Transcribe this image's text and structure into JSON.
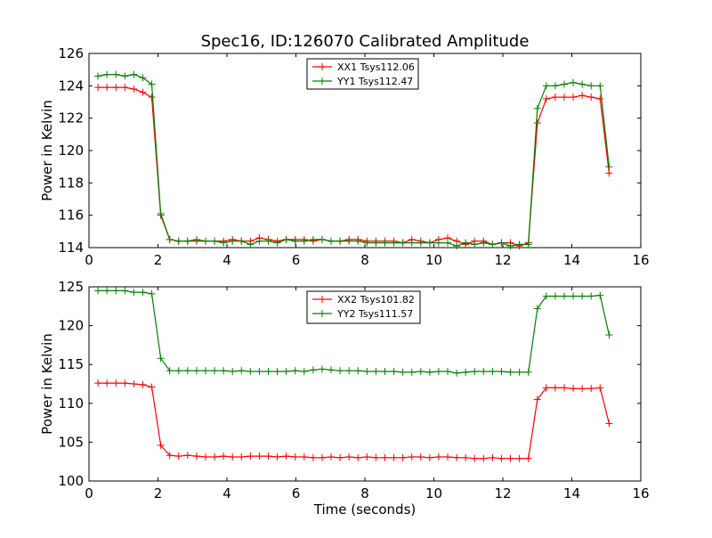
{
  "chart_data": [
    {
      "type": "line",
      "title": "Spec16, ID:126070 Calibrated Amplitude",
      "xlabel": "",
      "ylabel": "Power in Kelvin",
      "xlim": [
        0,
        16
      ],
      "ylim": [
        114,
        126
      ],
      "xticks": [
        "0",
        "2",
        "4",
        "6",
        "8",
        "10",
        "12",
        "14",
        "16"
      ],
      "yticks": [
        "114",
        "116",
        "118",
        "120",
        "122",
        "124",
        "126"
      ],
      "legend_position": "top-center",
      "grid": false,
      "series": [
        {
          "name": "XX1 Tsys112.06",
          "color": "#ff0000",
          "x": [
            0.26,
            0.52,
            0.78,
            1.04,
            1.3,
            1.56,
            1.82,
            2.08,
            2.34,
            2.6,
            2.86,
            3.12,
            3.38,
            3.64,
            3.9,
            4.16,
            4.42,
            4.68,
            4.94,
            5.2,
            5.46,
            5.72,
            5.98,
            6.24,
            6.5,
            6.76,
            7.02,
            7.28,
            7.54,
            7.8,
            8.06,
            8.32,
            8.58,
            8.84,
            9.1,
            9.36,
            9.62,
            9.88,
            10.14,
            10.4,
            10.66,
            10.92,
            11.18,
            11.44,
            11.7,
            11.96,
            12.22,
            12.48,
            12.74,
            13.0,
            13.26,
            13.52,
            13.78,
            14.04,
            14.3,
            14.56,
            14.82,
            15.08
          ],
          "values": [
            123.9,
            123.9,
            123.9,
            123.9,
            123.8,
            123.6,
            123.3,
            116.0,
            114.5,
            114.4,
            114.4,
            114.4,
            114.4,
            114.4,
            114.4,
            114.5,
            114.4,
            114.4,
            114.6,
            114.5,
            114.4,
            114.5,
            114.5,
            114.5,
            114.4,
            114.5,
            114.4,
            114.4,
            114.5,
            114.5,
            114.4,
            114.4,
            114.4,
            114.4,
            114.3,
            114.5,
            114.4,
            114.3,
            114.5,
            114.6,
            114.4,
            114.2,
            114.4,
            114.4,
            114.2,
            114.3,
            114.3,
            114.1,
            114.3,
            121.7,
            123.2,
            123.3,
            123.3,
            123.3,
            123.4,
            123.3,
            123.2,
            118.6
          ]
        },
        {
          "name": "YY1 Tsys112.47",
          "color": "#008000",
          "x": [
            0.26,
            0.52,
            0.78,
            1.04,
            1.3,
            1.56,
            1.82,
            2.08,
            2.34,
            2.6,
            2.86,
            3.12,
            3.38,
            3.64,
            3.9,
            4.16,
            4.42,
            4.68,
            4.94,
            5.2,
            5.46,
            5.72,
            5.98,
            6.24,
            6.5,
            6.76,
            7.02,
            7.28,
            7.54,
            7.8,
            8.06,
            8.32,
            8.58,
            8.84,
            9.1,
            9.36,
            9.62,
            9.88,
            10.14,
            10.4,
            10.66,
            10.92,
            11.18,
            11.44,
            11.7,
            11.96,
            12.22,
            12.48,
            12.74,
            13.0,
            13.26,
            13.52,
            13.78,
            14.04,
            14.3,
            14.56,
            14.82,
            15.08
          ],
          "values": [
            124.6,
            124.7,
            124.7,
            124.6,
            124.7,
            124.5,
            124.1,
            116.1,
            114.5,
            114.4,
            114.4,
            114.5,
            114.4,
            114.4,
            114.3,
            114.4,
            114.4,
            114.2,
            114.4,
            114.4,
            114.3,
            114.5,
            114.4,
            114.4,
            114.5,
            114.5,
            114.4,
            114.4,
            114.4,
            114.4,
            114.3,
            114.3,
            114.3,
            114.3,
            114.3,
            114.3,
            114.3,
            114.3,
            114.3,
            114.3,
            114.1,
            114.3,
            114.2,
            114.3,
            114.2,
            114.3,
            114.1,
            114.2,
            114.2,
            122.6,
            124.0,
            124.0,
            124.1,
            124.2,
            124.1,
            124.0,
            124.0,
            119.0
          ]
        }
      ]
    },
    {
      "type": "line",
      "title": "",
      "xlabel": "Time (seconds)",
      "ylabel": "Power in Kelvin",
      "xlim": [
        0,
        16
      ],
      "ylim": [
        100,
        125
      ],
      "xticks": [
        "0",
        "2",
        "4",
        "6",
        "8",
        "10",
        "12",
        "14",
        "16"
      ],
      "yticks": [
        "100",
        "105",
        "110",
        "115",
        "120",
        "125"
      ],
      "legend_position": "top-center",
      "grid": false,
      "series": [
        {
          "name": "XX2 Tsys101.82",
          "color": "#ff0000",
          "x": [
            0.26,
            0.52,
            0.78,
            1.04,
            1.3,
            1.56,
            1.82,
            2.08,
            2.34,
            2.6,
            2.86,
            3.12,
            3.38,
            3.64,
            3.9,
            4.16,
            4.42,
            4.68,
            4.94,
            5.2,
            5.46,
            5.72,
            5.98,
            6.24,
            6.5,
            6.76,
            7.02,
            7.28,
            7.54,
            7.8,
            8.06,
            8.32,
            8.58,
            8.84,
            9.1,
            9.36,
            9.62,
            9.88,
            10.14,
            10.4,
            10.66,
            10.92,
            11.18,
            11.44,
            11.7,
            11.96,
            12.22,
            12.48,
            12.74,
            13.0,
            13.26,
            13.52,
            13.78,
            14.04,
            14.3,
            14.56,
            14.82,
            15.08
          ],
          "values": [
            112.6,
            112.6,
            112.6,
            112.6,
            112.5,
            112.4,
            112.1,
            104.6,
            103.3,
            103.2,
            103.3,
            103.2,
            103.1,
            103.1,
            103.2,
            103.1,
            103.1,
            103.2,
            103.2,
            103.2,
            103.1,
            103.2,
            103.1,
            103.1,
            103.0,
            103.0,
            103.1,
            103.0,
            103.1,
            103.0,
            103.1,
            103.0,
            103.0,
            103.0,
            103.0,
            103.1,
            103.1,
            103.0,
            103.1,
            103.1,
            103.0,
            103.0,
            102.9,
            102.9,
            103.0,
            102.9,
            102.9,
            102.9,
            102.9,
            110.5,
            112.0,
            112.0,
            112.0,
            111.9,
            111.9,
            111.9,
            112.0,
            107.4
          ]
        },
        {
          "name": "YY2 Tsys111.57",
          "color": "#008000",
          "x": [
            0.26,
            0.52,
            0.78,
            1.04,
            1.3,
            1.56,
            1.82,
            2.08,
            2.34,
            2.6,
            2.86,
            3.12,
            3.38,
            3.64,
            3.9,
            4.16,
            4.42,
            4.68,
            4.94,
            5.2,
            5.46,
            5.72,
            5.98,
            6.24,
            6.5,
            6.76,
            7.02,
            7.28,
            7.54,
            7.8,
            8.06,
            8.32,
            8.58,
            8.84,
            9.1,
            9.36,
            9.62,
            9.88,
            10.14,
            10.4,
            10.66,
            10.92,
            11.18,
            11.44,
            11.7,
            11.96,
            12.22,
            12.48,
            12.74,
            13.0,
            13.26,
            13.52,
            13.78,
            14.04,
            14.3,
            14.56,
            14.82,
            15.08
          ],
          "values": [
            124.5,
            124.5,
            124.5,
            124.5,
            124.3,
            124.3,
            124.1,
            115.8,
            114.2,
            114.2,
            114.2,
            114.2,
            114.2,
            114.2,
            114.2,
            114.1,
            114.2,
            114.1,
            114.1,
            114.1,
            114.1,
            114.1,
            114.2,
            114.1,
            114.3,
            114.4,
            114.3,
            114.2,
            114.2,
            114.2,
            114.1,
            114.1,
            114.1,
            114.1,
            114.0,
            114.0,
            114.1,
            114.0,
            114.1,
            114.1,
            113.9,
            114.0,
            114.1,
            114.1,
            114.1,
            114.1,
            114.0,
            114.0,
            114.0,
            122.2,
            123.8,
            123.8,
            123.8,
            123.8,
            123.8,
            123.8,
            123.9,
            118.8
          ]
        }
      ]
    }
  ]
}
